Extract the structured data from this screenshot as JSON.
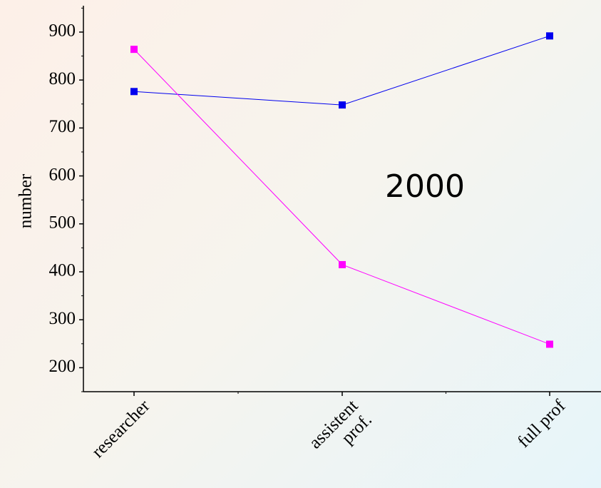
{
  "chart_data": {
    "type": "line",
    "categories": [
      "researcher",
      "assistent prof.",
      "full prof"
    ],
    "category_label_lines": [
      [
        "researcher"
      ],
      [
        "assistent",
        "prof."
      ],
      [
        "full prof"
      ]
    ],
    "series": [
      {
        "values": [
          776,
          748,
          892
        ],
        "color": "#0000ee"
      },
      {
        "values": [
          864,
          415,
          249
        ],
        "color": "#ff00ff"
      }
    ],
    "y_ticks": [
      200,
      300,
      400,
      500,
      600,
      700,
      800,
      900
    ],
    "y_tick_labels": [
      "200",
      "300",
      "400",
      "500",
      "600",
      "700",
      "800",
      "900"
    ],
    "ylabel": "number",
    "xlabel": "",
    "ylim": [
      150,
      955
    ],
    "annotation": "2000",
    "grid": false,
    "legend": "none"
  }
}
